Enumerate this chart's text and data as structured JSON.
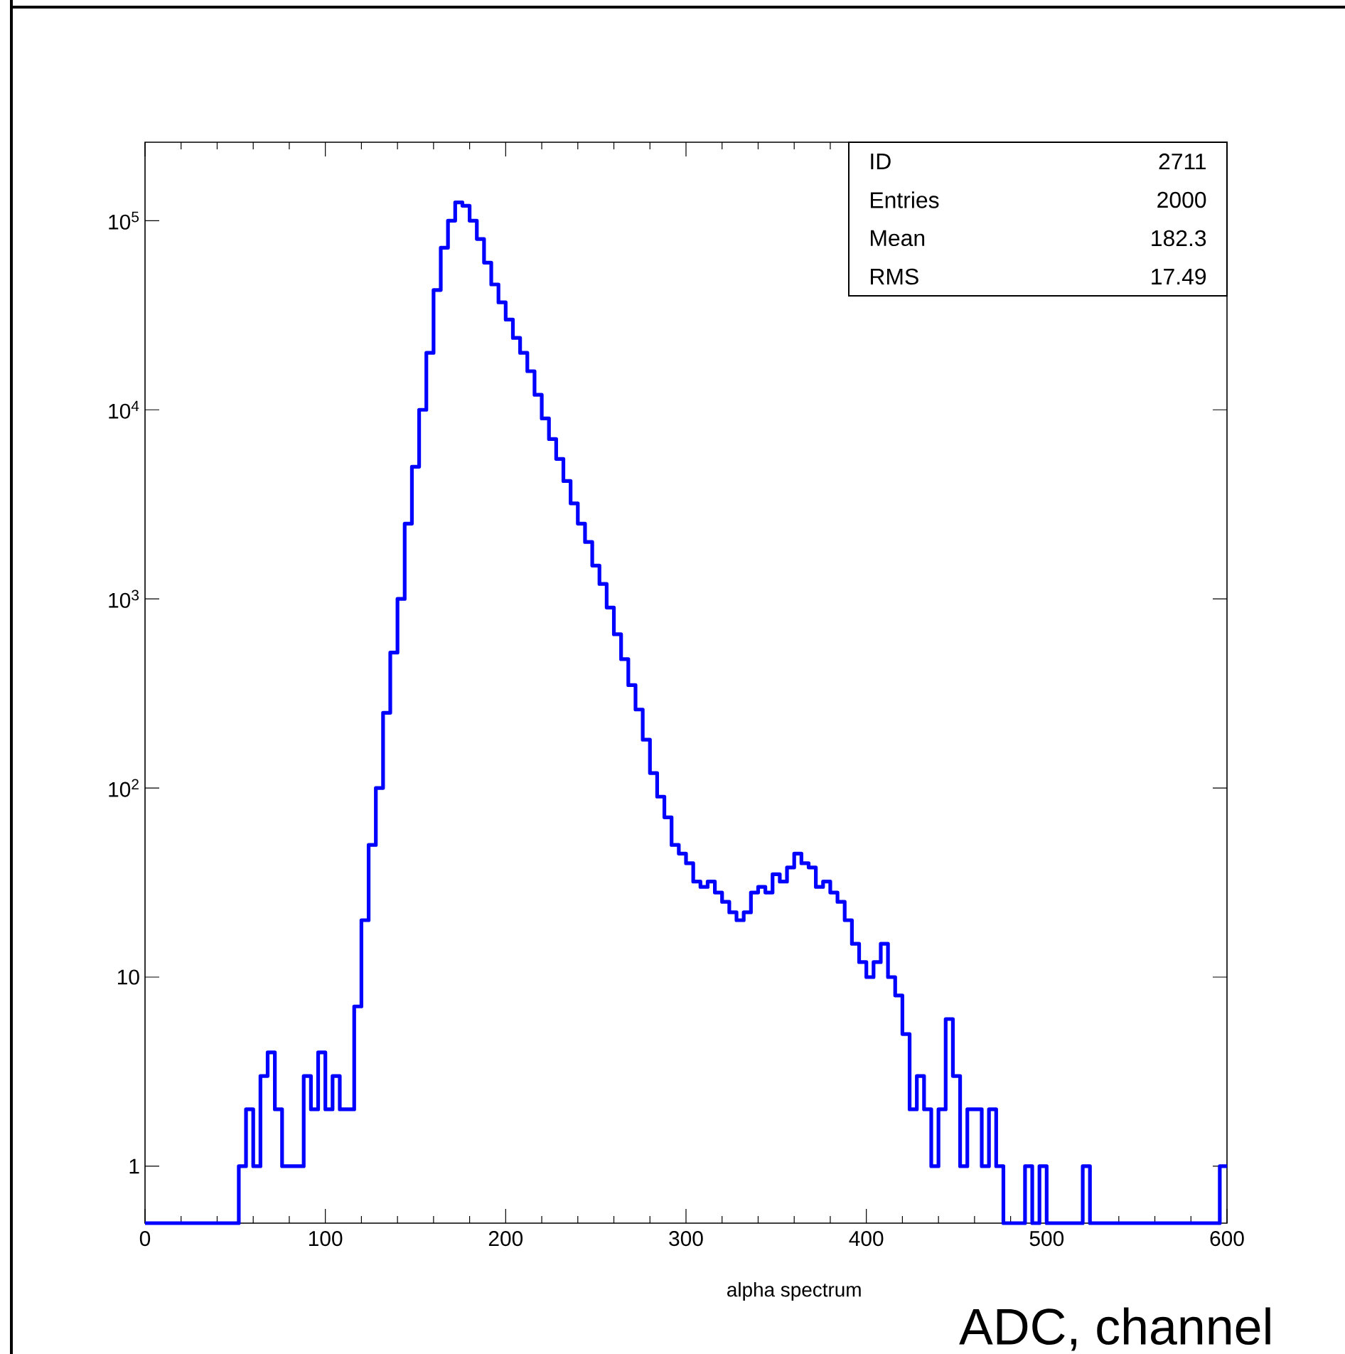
{
  "chart_data": {
    "type": "histogram",
    "xlabel": "alpha spectrum",
    "annotations": [
      "ID",
      "2711",
      "Entries",
      "2000",
      "Mean",
      "182.3",
      "RMS",
      "17.49",
      "ADC, channel"
    ],
    "bins": [
      0,
      4,
      8,
      12,
      16,
      20,
      24,
      28,
      32,
      36,
      40,
      44,
      48,
      52,
      56,
      60,
      64,
      68,
      72,
      76,
      80,
      84,
      88,
      92,
      96,
      100,
      104,
      108,
      112,
      116,
      120,
      124,
      128,
      132,
      136,
      140,
      144,
      148,
      152,
      156,
      160,
      164,
      168,
      172,
      176,
      180,
      184,
      188,
      192,
      196,
      200,
      204,
      208,
      212,
      216,
      220,
      224,
      228,
      232,
      236,
      240,
      244,
      248,
      252,
      256,
      260,
      264,
      268,
      272,
      276,
      280,
      284,
      288,
      292,
      296,
      300,
      304,
      308,
      312,
      316,
      320,
      324,
      328,
      332,
      336,
      340,
      344,
      348,
      352,
      356,
      360,
      364,
      368,
      372,
      376,
      380,
      384,
      388,
      392,
      396,
      400,
      404,
      408,
      412,
      416,
      420,
      424,
      428,
      432,
      436,
      440,
      444,
      448,
      452,
      456,
      460,
      464,
      468,
      472,
      476,
      480,
      484,
      488,
      492,
      496,
      500,
      504,
      508,
      512,
      516,
      520,
      524,
      528,
      532,
      536,
      540,
      544,
      548,
      552,
      556,
      560,
      564,
      568,
      572,
      576,
      580,
      584,
      588,
      592,
      596,
      600
    ],
    "values": [
      null,
      null,
      null,
      null,
      null,
      null,
      null,
      null,
      null,
      null,
      null,
      null,
      null,
      1,
      2,
      1,
      3,
      4,
      2,
      1,
      1,
      1,
      3,
      2,
      4,
      2,
      3,
      2,
      2,
      7,
      20,
      50,
      100,
      250,
      520,
      1000,
      2500,
      5000,
      10000,
      20000,
      43000,
      72000,
      100000,
      125000,
      120000,
      100000,
      80000,
      60000,
      46000,
      37000,
      30000,
      24000,
      20000,
      16000,
      12000,
      9000,
      7000,
      5500,
      4200,
      3200,
      2500,
      2000,
      1500,
      1200,
      900,
      650,
      480,
      350,
      260,
      180,
      120,
      90,
      70,
      50,
      45,
      40,
      32,
      30,
      32,
      28,
      25,
      22,
      20,
      22,
      28,
      30,
      28,
      35,
      32,
      38,
      45,
      40,
      38,
      30,
      32,
      28,
      25,
      20,
      15,
      12,
      10,
      12,
      15,
      10,
      8,
      5,
      2,
      3,
      2,
      1,
      2,
      6,
      3,
      1,
      2,
      2,
      1,
      2,
      1,
      null,
      null,
      null,
      1,
      null,
      1,
      null,
      null,
      null,
      null,
      null,
      1,
      null,
      null,
      null,
      null,
      null,
      null,
      null,
      null,
      null,
      null,
      null,
      null,
      null,
      null,
      null,
      null,
      null,
      null,
      1
    ],
    "color": "#0000ff",
    "log": "y",
    "xlim": [
      0,
      600
    ],
    "ylim": [
      0.5,
      260000
    ],
    "xticks": [
      0,
      100,
      200,
      300,
      400,
      500,
      600
    ],
    "yticks": [
      1,
      10,
      {
        "value": 100,
        "label": "10$^{2}$"
      },
      {
        "value": 1000,
        "label": "10$^{3}$"
      },
      {
        "value": 10000,
        "label": "10$^{4}$"
      },
      {
        "value": 100000,
        "label": "10$^{5}$"
      }
    ],
    "marker": "none",
    "line_style": "solid"
  }
}
